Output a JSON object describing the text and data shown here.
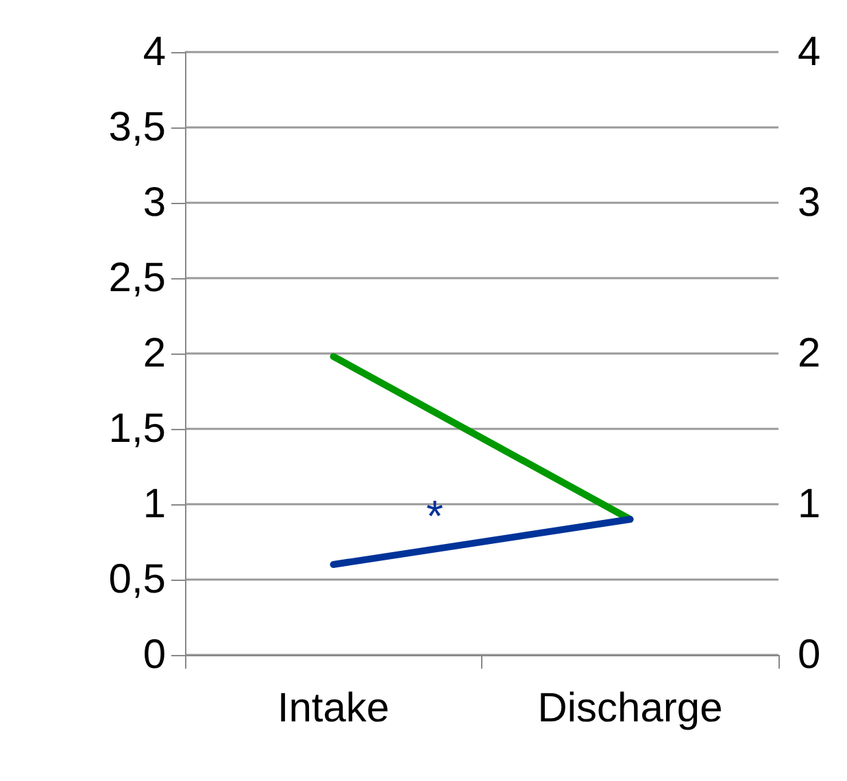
{
  "chart_data": {
    "type": "line",
    "categories": [
      "Intake",
      "Discharge"
    ],
    "series": [
      {
        "color": "#009900",
        "values": [
          1.98,
          0.9
        ]
      },
      {
        "color": "#003399",
        "values": [
          0.6,
          0.9
        ]
      }
    ],
    "ylim": [
      0,
      4
    ],
    "yticks": [
      0,
      {
        "value": 0.5,
        "label": "0,5"
      },
      1,
      {
        "value": 1.5,
        "label": "1,5"
      },
      2,
      {
        "value": 2.5,
        "label": "2,5"
      },
      3,
      {
        "value": 3.5,
        "label": "3,5"
      },
      4
    ],
    "y2lim": [
      0,
      4
    ],
    "y2ticks": [
      0,
      1,
      2,
      3,
      4
    ],
    "annotations": [
      "*"
    ],
    "grid": "y",
    "marker": "none",
    "line_style": "solid"
  }
}
